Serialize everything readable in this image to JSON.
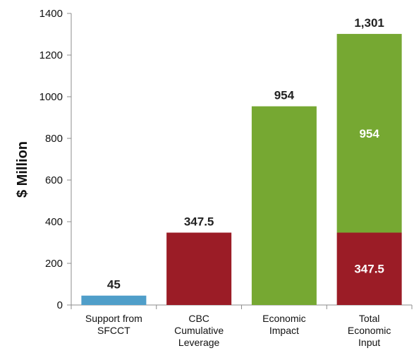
{
  "chart_data": {
    "type": "bar",
    "stacked": true,
    "ylabel": "$ Million",
    "ylim": [
      0,
      1400
    ],
    "yticks": [
      0,
      200,
      400,
      600,
      800,
      1000,
      1200,
      1400
    ],
    "grid": false,
    "legend": "none",
    "categories": [
      [
        "Support from",
        "SFCCT"
      ],
      [
        "CBC",
        "Cumulative",
        "Leverage"
      ],
      [
        "Economic",
        "Impact"
      ],
      [
        "Total",
        "Economic",
        "Input"
      ]
    ],
    "series": [
      {
        "color": "#4f9ec9",
        "values": [
          45,
          0,
          0,
          0
        ]
      },
      {
        "color": "#9b1c26",
        "values": [
          0,
          347.5,
          0,
          347.5
        ]
      },
      {
        "color": "#76a832",
        "values": [
          0,
          0,
          954,
          954
        ]
      }
    ],
    "data_labels": [
      {
        "category": 0,
        "text": "45",
        "position": "above"
      },
      {
        "category": 1,
        "text": "347.5",
        "position": "above"
      },
      {
        "category": 2,
        "text": "954",
        "position": "above"
      },
      {
        "category": 3,
        "text": "1,301",
        "position": "above"
      },
      {
        "category": 3,
        "series": 1,
        "text": "347.5",
        "position": "inside"
      },
      {
        "category": 3,
        "series": 2,
        "text": "954",
        "position": "inside"
      }
    ]
  }
}
